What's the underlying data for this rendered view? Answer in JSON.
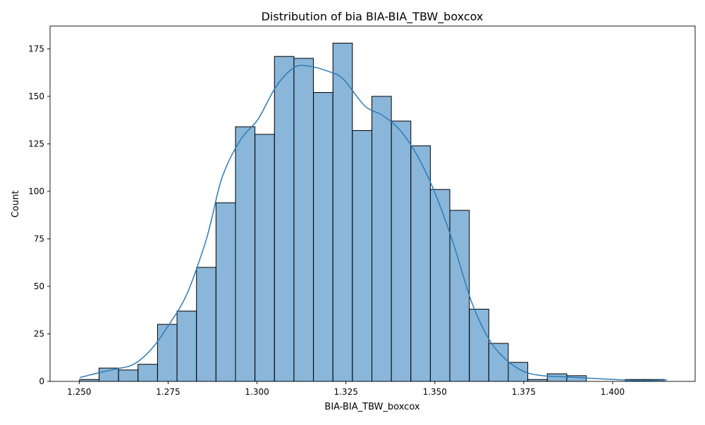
{
  "chart_data": {
    "type": "bar",
    "title": "Distribution of bia BIA-BIA_TBW_boxcox",
    "xlabel": "BIA-BIA_TBW_boxcox",
    "ylabel": "Count",
    "xlim": [
      1.2418,
      1.4232
    ],
    "ylim": [
      0,
      187
    ],
    "xticks": [
      1.25,
      1.275,
      1.3,
      1.325,
      1.35,
      1.375,
      1.4
    ],
    "xtick_labels": [
      "1.250",
      "1.275",
      "1.300",
      "1.325",
      "1.350",
      "1.375",
      "1.400"
    ],
    "yticks": [
      0,
      25,
      50,
      75,
      100,
      125,
      150,
      175
    ],
    "ytick_labels": [
      "0",
      "25",
      "50",
      "75",
      "100",
      "125",
      "150",
      "175"
    ],
    "bin_start": 1.2501,
    "bin_width": 0.00548,
    "values": [
      1,
      7,
      6,
      9,
      30,
      37,
      60,
      94,
      134,
      130,
      171,
      170,
      152,
      178,
      132,
      150,
      137,
      124,
      101,
      90,
      38,
      20,
      10,
      1,
      4,
      3,
      0,
      0,
      1,
      1
    ],
    "bar_color": "#4a8fc5",
    "bar_opacity": 0.65,
    "edge_color": "#000000",
    "kde_color": "#2e7bb6",
    "kde": {
      "x": [
        1.2502,
        1.2554,
        1.2603,
        1.2653,
        1.2703,
        1.2753,
        1.2803,
        1.2853,
        1.2873,
        1.2903,
        1.2953,
        1.3003,
        1.3053,
        1.3103,
        1.3143,
        1.3203,
        1.3243,
        1.3303,
        1.3353,
        1.3403,
        1.3453,
        1.3503,
        1.3553,
        1.3603,
        1.3653,
        1.3703,
        1.3753,
        1.3803,
        1.3853,
        1.3903,
        1.3953,
        1.4003,
        1.4053,
        1.4103,
        1.4153
      ],
      "y": [
        2,
        4.5,
        6.5,
        9,
        17,
        30,
        46,
        72,
        86,
        108,
        127,
        138,
        155,
        165,
        166,
        163,
        159,
        145,
        140,
        132,
        118,
        98,
        72,
        42,
        22,
        11,
        5,
        3,
        2.5,
        2,
        1.5,
        1,
        0.5,
        0.5,
        0.8
      ]
    }
  }
}
